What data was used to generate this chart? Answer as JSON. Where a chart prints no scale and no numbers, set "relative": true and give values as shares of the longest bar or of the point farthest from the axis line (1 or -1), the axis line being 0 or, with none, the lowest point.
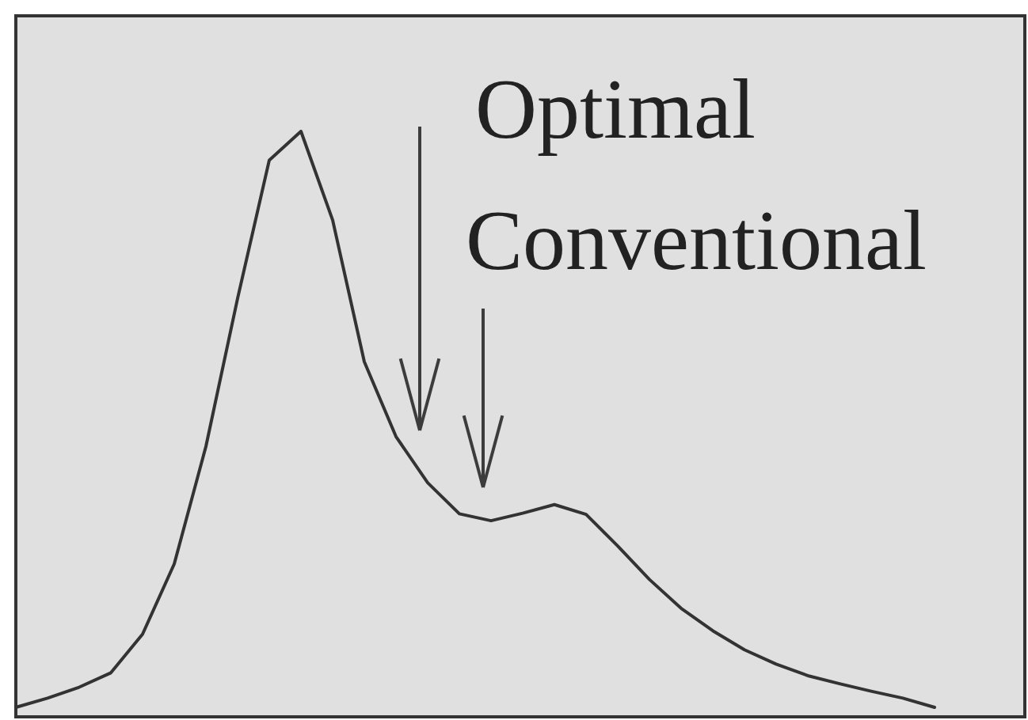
{
  "chart_data": {
    "type": "line",
    "relative": true,
    "categories": [
      null,
      null,
      null,
      null,
      null,
      null,
      null,
      null,
      null,
      null,
      null,
      null,
      null,
      null,
      null,
      null,
      null,
      null,
      null,
      null,
      null,
      null,
      null,
      null,
      null,
      null,
      null,
      null,
      null,
      null
    ],
    "series": [
      {
        "color": "#333333",
        "values": [
          0,
          0.016,
          0.035,
          0.06,
          0.127,
          0.249,
          0.453,
          0.71,
          0.95,
          1,
          0.846,
          0.6,
          0.47,
          0.39,
          0.336,
          0.324,
          0.337,
          0.352,
          0.335,
          0.28,
          0.222,
          0.172,
          0.133,
          0.1,
          0.075,
          0.055,
          0.041,
          0.028,
          0.016,
          0
        ]
      }
    ],
    "annotations": [
      "Optimal",
      "Conventional"
    ],
    "marker": "none",
    "line_style": "solid"
  }
}
